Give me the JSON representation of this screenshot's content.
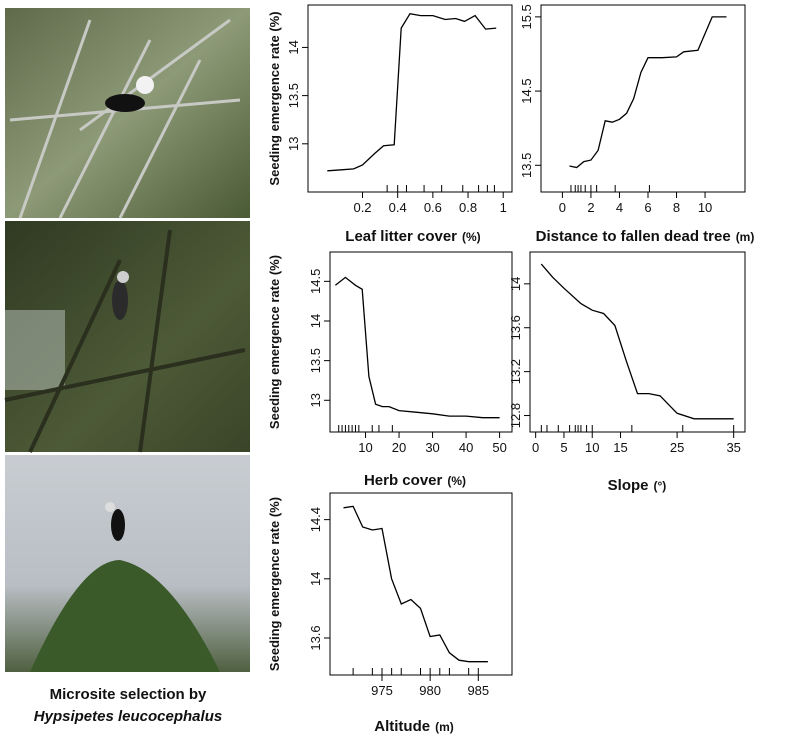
{
  "chart_data": [
    {
      "type": "line",
      "ylabel": "Seeding emergence rate (%)",
      "xlabel": "Leaf litter cover",
      "xunit": "(%)",
      "x": [
        0.0,
        0.08,
        0.15,
        0.2,
        0.27,
        0.32,
        0.38,
        0.42,
        0.47,
        0.53,
        0.6,
        0.67,
        0.73,
        0.78,
        0.84,
        0.9,
        0.96
      ],
      "values": [
        12.72,
        12.73,
        12.74,
        12.78,
        12.9,
        12.98,
        12.99,
        14.2,
        14.35,
        14.33,
        14.33,
        14.29,
        14.3,
        14.27,
        14.33,
        14.19,
        14.2
      ],
      "rug": [
        0.34,
        0.4,
        0.45,
        0.55,
        0.65,
        0.77,
        0.86,
        0.91,
        0.95
      ],
      "xlim": [
        -0.11,
        1.05
      ],
      "ylim": [
        12.5,
        14.44
      ],
      "xticks": [
        0.2,
        0.4,
        0.6,
        0.8,
        1.0
      ],
      "yticks": [
        13.0,
        13.5,
        14.0
      ]
    },
    {
      "type": "line",
      "xlabel": "Distance to fallen dead tree",
      "xunit": "(m)",
      "x": [
        0.5,
        1,
        1.5,
        2,
        2.5,
        3,
        3.5,
        4,
        4.5,
        5,
        5.5,
        6,
        7,
        8,
        8.5,
        9.5,
        10.5,
        11.5
      ],
      "values": [
        13.49,
        13.47,
        13.55,
        13.57,
        13.7,
        14.1,
        14.08,
        14.12,
        14.2,
        14.4,
        14.75,
        14.95,
        14.95,
        14.96,
        15.03,
        15.05,
        15.5,
        15.5
      ],
      "rug": [
        0.6,
        0.9,
        1.1,
        1.3,
        1.6,
        2,
        2.4,
        3.7,
        6.1
      ],
      "xlim": [
        -1.5,
        12.8
      ],
      "ylim": [
        13.14,
        15.66
      ],
      "xticks": [
        0,
        2,
        4,
        6,
        8,
        10
      ],
      "yticks": [
        13.5,
        14.5,
        15.5
      ]
    },
    {
      "type": "line",
      "ylabel": "Seeding emergence rate (%)",
      "xlabel": "Herb cover",
      "xunit": "(%)",
      "x": [
        1,
        4,
        7,
        9,
        11,
        13,
        15,
        17,
        20,
        25,
        30,
        35,
        40,
        45,
        50
      ],
      "values": [
        14.45,
        14.55,
        14.45,
        14.4,
        13.3,
        12.95,
        12.92,
        12.92,
        12.87,
        12.85,
        12.83,
        12.8,
        12.8,
        12.78,
        12.78
      ],
      "rug": [
        2,
        3,
        4,
        5,
        6,
        7,
        8,
        12,
        14,
        18
      ],
      "xlim": [
        -0.6,
        53.7
      ],
      "ylim": [
        12.6,
        14.87
      ],
      "xticks": [
        10,
        20,
        30,
        40,
        50
      ],
      "yticks": [
        13.0,
        13.5,
        14.0,
        14.5
      ]
    },
    {
      "type": "line",
      "xlabel": "Slope",
      "xunit": "(°)",
      "x": [
        1,
        3,
        5,
        8,
        10,
        12,
        14,
        16,
        18,
        20,
        22,
        25,
        28,
        31,
        35
      ],
      "values": [
        14.18,
        14.06,
        13.96,
        13.82,
        13.76,
        13.73,
        13.62,
        13.3,
        13.0,
        13.0,
        12.98,
        12.82,
        12.77,
        12.77,
        12.77
      ],
      "rug": [
        1,
        2,
        4,
        6,
        7,
        7.5,
        8,
        9,
        10,
        17,
        26,
        35
      ],
      "xlim": [
        -1,
        37
      ],
      "ylim": [
        12.65,
        14.29
      ],
      "xticks": [
        0,
        5,
        10,
        15,
        25,
        35
      ],
      "yticks": [
        12.8,
        13.2,
        13.6,
        14.0
      ]
    },
    {
      "type": "line",
      "ylabel": "Seeding emergence rate (%)",
      "xlabel": "Altitude",
      "xunit": "(m)",
      "x": [
        971,
        972,
        973,
        974,
        975,
        976,
        977,
        978,
        979,
        980,
        981,
        982,
        983,
        984,
        985,
        986
      ],
      "values": [
        14.48,
        14.49,
        14.35,
        14.33,
        14.34,
        14.0,
        13.83,
        13.86,
        13.8,
        13.61,
        13.62,
        13.5,
        13.45,
        13.44,
        13.44,
        13.44
      ],
      "rug": [
        972,
        974,
        975,
        976,
        977,
        979,
        980,
        981,
        982,
        984,
        985
      ],
      "xlim": [
        969.6,
        988.5
      ],
      "ylim": [
        13.35,
        14.58
      ],
      "xticks": [
        975,
        980,
        985
      ],
      "yticks": [
        13.6,
        14.0,
        14.4
      ]
    }
  ],
  "caption": {
    "line1": "Microsite selection by",
    "line2": "Hypsipetes leucocephalus"
  }
}
